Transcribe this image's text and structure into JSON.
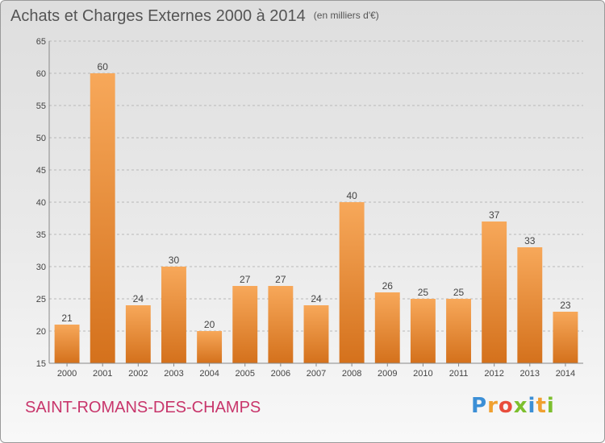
{
  "title": "Achats et Charges Externes 2000 à 2014",
  "subtitle": "(en milliers d'€)",
  "commune": "SAINT-ROMANS-DES-CHAMPS",
  "logo": {
    "letters": [
      "P",
      "r",
      "o",
      "x",
      "i",
      "t",
      "i"
    ],
    "colors": [
      "#3c8fd6",
      "#f0a030",
      "#e84d3c",
      "#7dbf2e",
      "#3c8fd6",
      "#f0a030",
      "#7dbf2e"
    ]
  },
  "colors": {
    "bar_light": "#f7a85a",
    "bar_dark": "#d4711c",
    "grid": "#b8b8b8",
    "axis": "#888888",
    "text": "#444444"
  },
  "chart_data": {
    "type": "bar",
    "categories": [
      "2000",
      "2001",
      "2002",
      "2003",
      "2004",
      "2005",
      "2006",
      "2007",
      "2008",
      "2009",
      "2010",
      "2011",
      "2012",
      "2013",
      "2014"
    ],
    "values": [
      21,
      60,
      24,
      30,
      20,
      27,
      27,
      24,
      40,
      26,
      25,
      25,
      37,
      33,
      23
    ],
    "ylim": [
      15,
      65
    ],
    "yticks": [
      15,
      20,
      25,
      30,
      35,
      40,
      45,
      50,
      55,
      60,
      65
    ],
    "grid": true
  }
}
